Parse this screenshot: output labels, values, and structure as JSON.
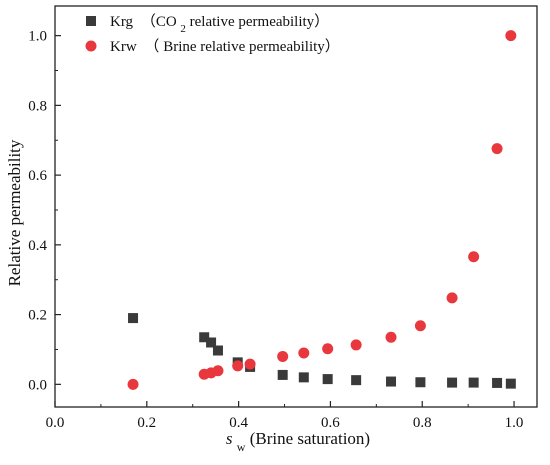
{
  "chart_data": {
    "type": "scatter",
    "title": "",
    "xlabel_symbol": "s",
    "xlabel_sub": "w",
    "xlabel_rest": " (Brine saturation)",
    "ylabel": "Relative permeability",
    "xlim": [
      0.0,
      1.05
    ],
    "ylim": [
      -0.065,
      1.085
    ],
    "x_ticks": [
      0.0,
      0.2,
      0.4,
      0.6,
      0.8,
      1.0
    ],
    "y_ticks": [
      0.0,
      0.2,
      0.4,
      0.6,
      0.8,
      1.0
    ],
    "x_tick_labels": [
      "0.0",
      "0.2",
      "0.4",
      "0.6",
      "0.8",
      "1.0"
    ],
    "y_tick_labels": [
      "0.0",
      "0.2",
      "0.4",
      "0.6",
      "0.8",
      "1.0"
    ],
    "grid": false,
    "legend_position": "top-left",
    "series": [
      {
        "name": "Krg",
        "legend_main": "Krg",
        "legend_paren_open": "（CO",
        "legend_paren_sub": "2",
        "legend_paren_rest": " relative permeability）",
        "marker": "square",
        "color": "#3a3a3a",
        "x": [
          0.17,
          0.325,
          0.34,
          0.355,
          0.398,
          0.425,
          0.496,
          0.542,
          0.594,
          0.656,
          0.732,
          0.796,
          0.865,
          0.912,
          0.963,
          0.993
        ],
        "y": [
          0.19,
          0.135,
          0.12,
          0.097,
          0.063,
          0.05,
          0.027,
          0.02,
          0.015,
          0.012,
          0.008,
          0.006,
          0.005,
          0.005,
          0.004,
          0.002
        ]
      },
      {
        "name": "Krw",
        "legend_main": "Krw",
        "legend_paren_open": "（",
        "legend_paren_rest": "Brine relative permeability）",
        "marker": "circle",
        "color": "#e8383d",
        "x": [
          0.17,
          0.325,
          0.34,
          0.355,
          0.398,
          0.425,
          0.496,
          0.542,
          0.594,
          0.656,
          0.732,
          0.796,
          0.865,
          0.912,
          0.963,
          0.993
        ],
        "y": [
          0.0,
          0.029,
          0.033,
          0.039,
          0.053,
          0.058,
          0.08,
          0.09,
          0.102,
          0.113,
          0.135,
          0.168,
          0.248,
          0.366,
          0.676,
          1.0
        ]
      }
    ]
  }
}
